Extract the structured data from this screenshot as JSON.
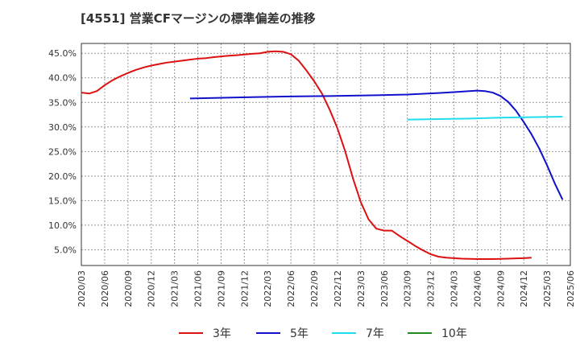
{
  "chart_data": {
    "type": "line",
    "title": "[4551]  営業CFマージンの標準偏差の推移",
    "xlabel": "",
    "ylabel": "",
    "ylim": [
      1.8,
      47
    ],
    "grid": true,
    "legend_position": "bottom",
    "y_ticks": [
      {
        "value": 5,
        "label": "5.0%"
      },
      {
        "value": 10,
        "label": "10.0%"
      },
      {
        "value": 15,
        "label": "15.0%"
      },
      {
        "value": 20,
        "label": "20.0%"
      },
      {
        "value": 25,
        "label": "25.0%"
      },
      {
        "value": 30,
        "label": "30.0%"
      },
      {
        "value": 35,
        "label": "35.0%"
      },
      {
        "value": 40,
        "label": "40.0%"
      },
      {
        "value": 45,
        "label": "45.0%"
      }
    ],
    "x_ticks": [
      "2020/03",
      "2020/06",
      "2020/09",
      "2020/12",
      "2021/03",
      "2021/06",
      "2021/09",
      "2021/12",
      "2022/03",
      "2022/06",
      "2022/09",
      "2022/12",
      "2023/03",
      "2023/06",
      "2023/09",
      "2023/12",
      "2024/03",
      "2024/06",
      "2024/09",
      "2024/12",
      "2025/03",
      "2025/06"
    ],
    "series": [
      {
        "name": "3年",
        "color": "#dd1111",
        "points": [
          {
            "x": 0,
            "y": 37.0
          },
          {
            "x": 1,
            "y": 36.8
          },
          {
            "x": 2,
            "y": 37.3
          },
          {
            "x": 3,
            "y": 38.5
          },
          {
            "x": 4,
            "y": 39.5
          },
          {
            "x": 5,
            "y": 40.3
          },
          {
            "x": 6,
            "y": 41.0
          },
          {
            "x": 7,
            "y": 41.6
          },
          {
            "x": 8,
            "y": 42.1
          },
          {
            "x": 9,
            "y": 42.5
          },
          {
            "x": 10,
            "y": 42.8
          },
          {
            "x": 11,
            "y": 43.1
          },
          {
            "x": 12,
            "y": 43.3
          },
          {
            "x": 13,
            "y": 43.5
          },
          {
            "x": 14,
            "y": 43.7
          },
          {
            "x": 15,
            "y": 43.9
          },
          {
            "x": 16,
            "y": 44.0
          },
          {
            "x": 17,
            "y": 44.2
          },
          {
            "x": 18,
            "y": 44.35
          },
          {
            "x": 19,
            "y": 44.5
          },
          {
            "x": 20,
            "y": 44.6
          },
          {
            "x": 21,
            "y": 44.75
          },
          {
            "x": 22,
            "y": 44.9
          },
          {
            "x": 23,
            "y": 45.0
          },
          {
            "x": 24,
            "y": 45.3
          },
          {
            "x": 25,
            "y": 45.4
          },
          {
            "x": 26,
            "y": 45.3
          },
          {
            "x": 27,
            "y": 44.8
          },
          {
            "x": 28,
            "y": 43.5
          },
          {
            "x": 29,
            "y": 41.5
          },
          {
            "x": 30,
            "y": 39.3
          },
          {
            "x": 31,
            "y": 36.8
          },
          {
            "x": 32,
            "y": 33.5
          },
          {
            "x": 33,
            "y": 29.7
          },
          {
            "x": 34,
            "y": 25.0
          },
          {
            "x": 35,
            "y": 19.5
          },
          {
            "x": 36,
            "y": 14.7
          },
          {
            "x": 37,
            "y": 11.2
          },
          {
            "x": 38,
            "y": 9.3
          },
          {
            "x": 39,
            "y": 8.9
          },
          {
            "x": 40,
            "y": 8.9
          },
          {
            "x": 41,
            "y": 7.8
          },
          {
            "x": 42,
            "y": 6.8
          },
          {
            "x": 43,
            "y": 5.8
          },
          {
            "x": 44,
            "y": 4.9
          },
          {
            "x": 45,
            "y": 4.1
          },
          {
            "x": 46,
            "y": 3.6
          },
          {
            "x": 47,
            "y": 3.4
          },
          {
            "x": 48,
            "y": 3.3
          },
          {
            "x": 49,
            "y": 3.2
          },
          {
            "x": 50,
            "y": 3.15
          },
          {
            "x": 51,
            "y": 3.1
          },
          {
            "x": 52,
            "y": 3.1
          },
          {
            "x": 53,
            "y": 3.1
          },
          {
            "x": 54,
            "y": 3.15
          },
          {
            "x": 55,
            "y": 3.2
          },
          {
            "x": 56,
            "y": 3.25
          },
          {
            "x": 57,
            "y": 3.3
          },
          {
            "x": 58,
            "y": 3.4
          }
        ]
      },
      {
        "name": "5年",
        "color": "#1111cc",
        "points": [
          {
            "x": 14,
            "y": 35.8
          },
          {
            "x": 20,
            "y": 36.0
          },
          {
            "x": 26,
            "y": 36.2
          },
          {
            "x": 32,
            "y": 36.3
          },
          {
            "x": 38,
            "y": 36.45
          },
          {
            "x": 42,
            "y": 36.6
          },
          {
            "x": 46,
            "y": 36.9
          },
          {
            "x": 48,
            "y": 37.1
          },
          {
            "x": 50,
            "y": 37.3
          },
          {
            "x": 51,
            "y": 37.4
          },
          {
            "x": 52,
            "y": 37.3
          },
          {
            "x": 53,
            "y": 37.0
          },
          {
            "x": 54,
            "y": 36.3
          },
          {
            "x": 55,
            "y": 35.1
          },
          {
            "x": 56,
            "y": 33.3
          },
          {
            "x": 57,
            "y": 31.0
          },
          {
            "x": 58,
            "y": 28.5
          },
          {
            "x": 59,
            "y": 25.6
          },
          {
            "x": 60,
            "y": 22.2
          },
          {
            "x": 61,
            "y": 18.5
          },
          {
            "x": 62,
            "y": 15.2
          }
        ]
      },
      {
        "name": "7年",
        "color": "#22ddee",
        "points": [
          {
            "x": 42,
            "y": 31.5
          },
          {
            "x": 46,
            "y": 31.6
          },
          {
            "x": 50,
            "y": 31.7
          },
          {
            "x": 54,
            "y": 31.9
          },
          {
            "x": 58,
            "y": 32.0
          },
          {
            "x": 62,
            "y": 32.1
          }
        ]
      },
      {
        "name": "10年",
        "color": "#228822",
        "points": []
      }
    ]
  }
}
